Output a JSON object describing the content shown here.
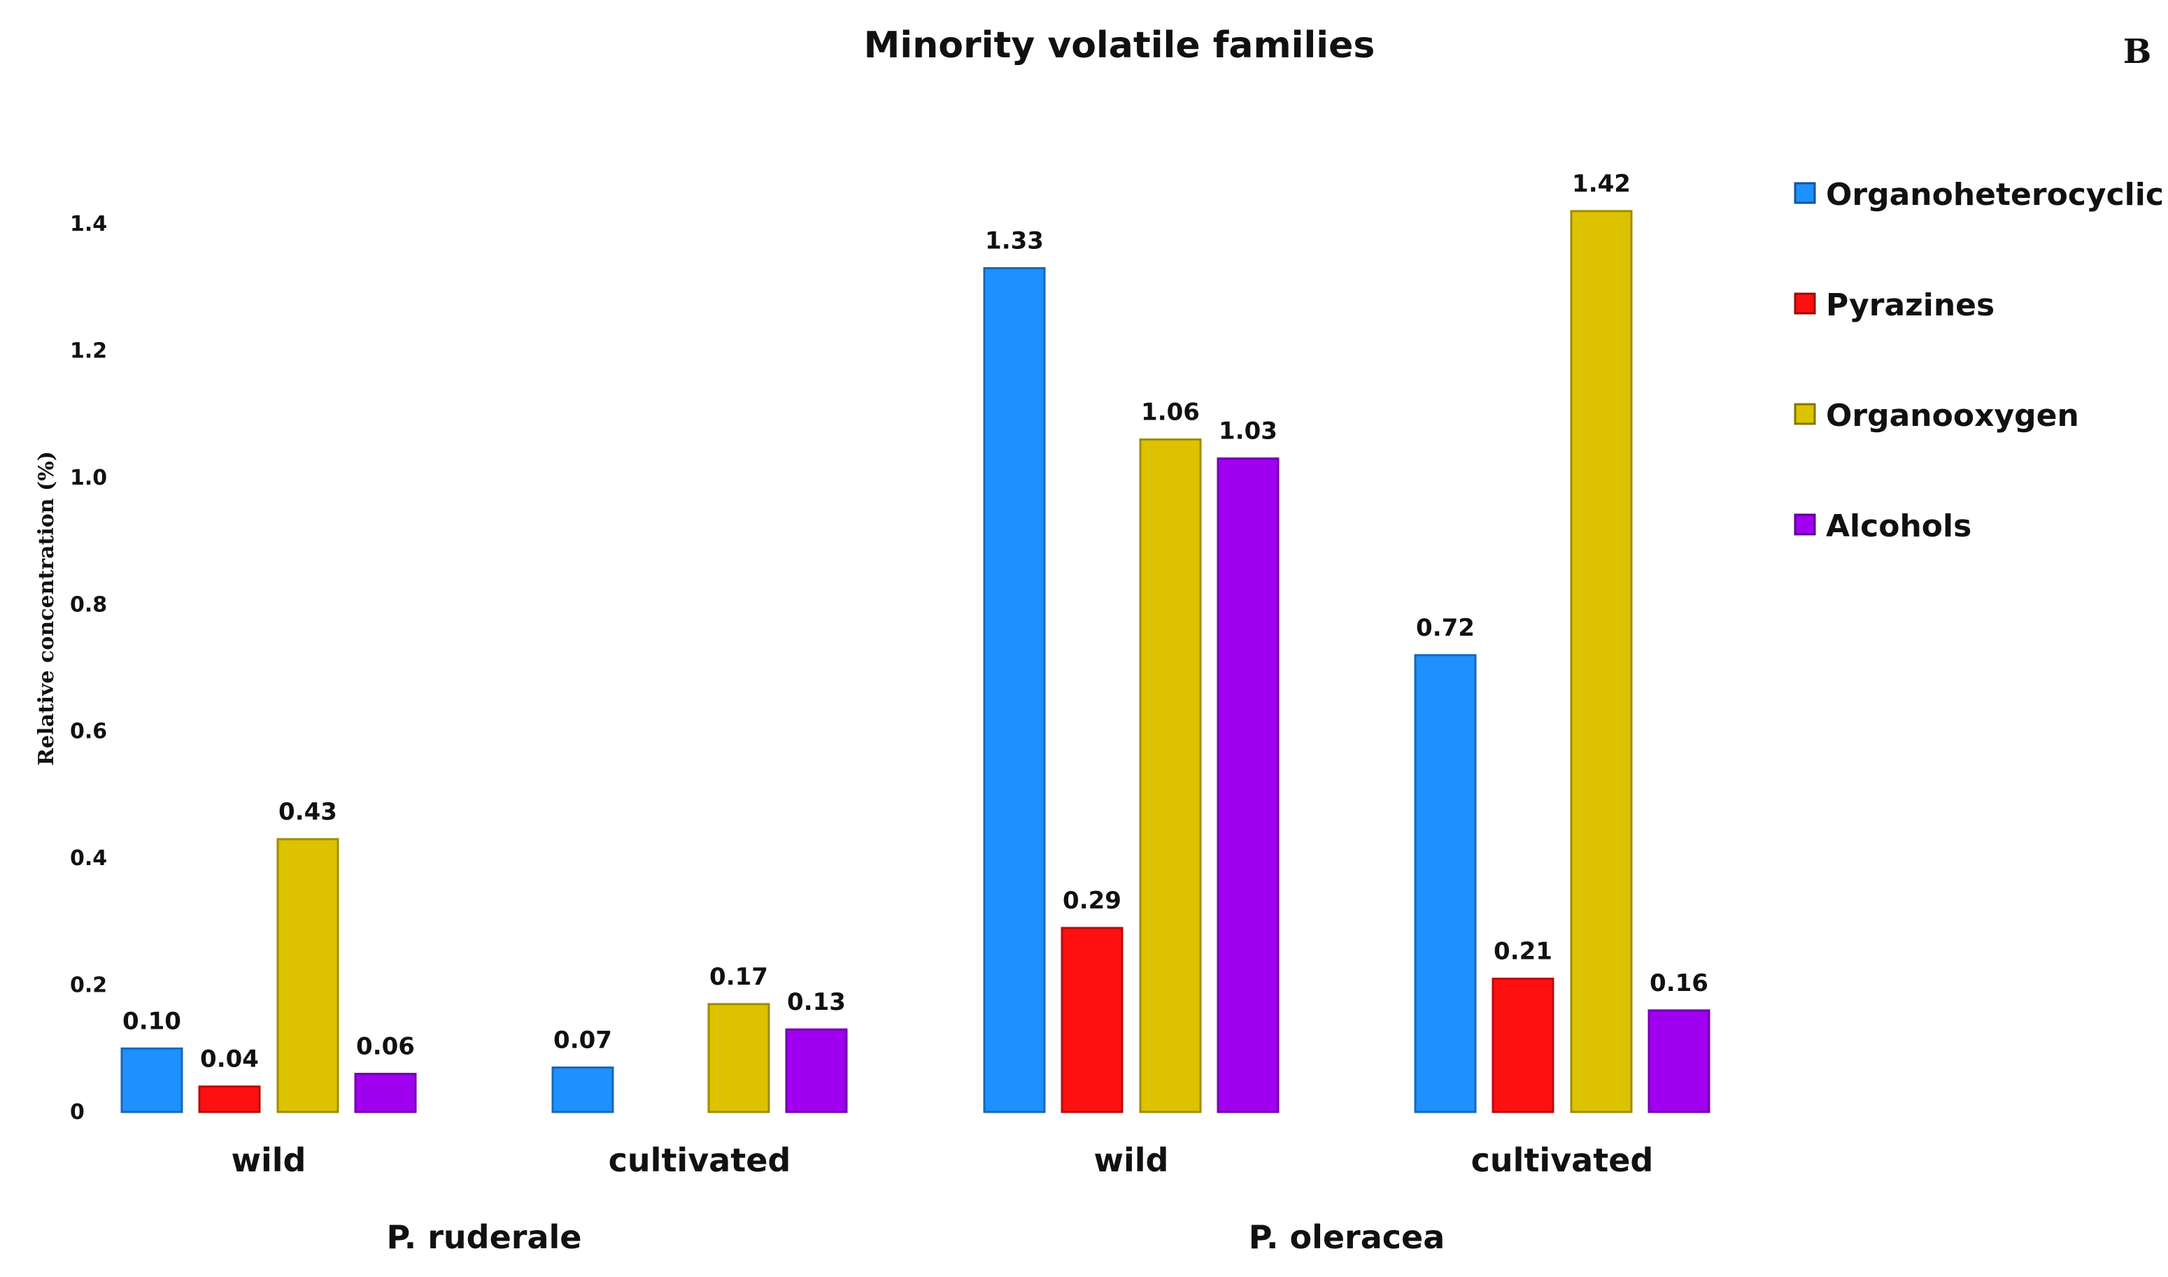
{
  "chart_data": {
    "type": "bar",
    "title": "Minority volatile families",
    "panel_label": "B",
    "xlabel": "",
    "ylabel": "Relative concentration (%)",
    "ylim": [
      0,
      1.4
    ],
    "yticks": [
      0,
      0.2,
      0.4,
      0.6,
      0.8,
      1.0,
      1.2,
      1.4
    ],
    "ytick_labels": [
      "0",
      "0.2",
      "0.4",
      "0.6",
      "0.8",
      "1.0",
      "1.2",
      "1.4"
    ],
    "grid": false,
    "legend_position": "right",
    "categories": [
      "wild",
      "cultivated",
      "wild",
      "cultivated"
    ],
    "groups": [
      {
        "label": "P. ruderale",
        "categories": [
          0,
          1
        ]
      },
      {
        "label": "P. oleracea",
        "categories": [
          2,
          3
        ]
      }
    ],
    "series": [
      {
        "name": "Organoheterocyclic",
        "color": "#1E90FF",
        "values": [
          0.1,
          0.07,
          1.33,
          0.72
        ],
        "labels": [
          "0.10",
          "0.07",
          "1.33",
          "0.72"
        ]
      },
      {
        "name": "Pyrazines",
        "color": "#FF1010",
        "values": [
          0.04,
          null,
          0.29,
          0.21
        ],
        "labels": [
          "0.04",
          "",
          "0.29",
          "0.21"
        ]
      },
      {
        "name": "Organooxygen",
        "color": "#DDC200",
        "values": [
          0.43,
          0.17,
          1.06,
          1.42
        ],
        "labels": [
          "0.43",
          "0.17",
          "1.06",
          "1.42"
        ]
      },
      {
        "name": "Alcohols",
        "color": "#A000F0",
        "values": [
          0.06,
          0.13,
          1.03,
          0.16
        ],
        "labels": [
          "0.06",
          "0.13",
          "1.03",
          "0.16"
        ]
      }
    ]
  }
}
